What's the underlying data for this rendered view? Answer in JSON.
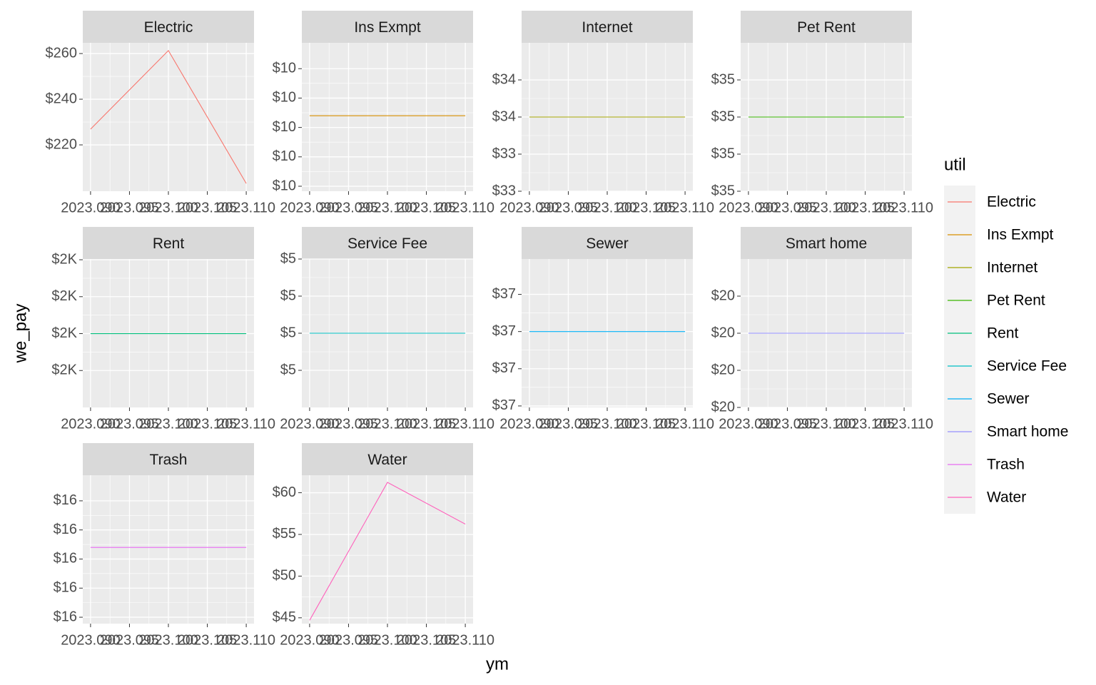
{
  "chart_data": {
    "type": "line",
    "x_label": "ym",
    "y_label": "we_pay",
    "legend_title": "util",
    "x": [
      2023.09,
      2023.1,
      2023.11
    ],
    "xlim": [
      2023.089,
      2023.111
    ],
    "xticks": [
      {
        "value": 2023.09,
        "label": "2023.090"
      },
      2023.095,
      {
        "value": 2023.1,
        "label": "2023.100"
      },
      2023.105,
      {
        "value": 2023.11,
        "label": "2023.110"
      }
    ],
    "grid": true,
    "series": [
      {
        "name": "Electric",
        "color": "#F8766D",
        "values": [
          226.9,
          261.3,
          203.1
        ],
        "ylim": [
          199.7,
          264.7
        ],
        "yticks": [
          {
            "value": 220,
            "label": "$220"
          },
          {
            "value": 240,
            "label": "$240"
          },
          {
            "value": 260,
            "label": "$260"
          }
        ]
      },
      {
        "name": "Ins Exmpt",
        "color": "#D89000",
        "values": [
          10.04,
          10.04,
          10.04
        ],
        "ylim": [
          9.783,
          10.288
        ],
        "yticks": [
          {
            "value": 9.8,
            "label": "$10"
          },
          {
            "value": 9.9,
            "label": "$10"
          },
          {
            "value": 10.0,
            "label": "$10"
          },
          {
            "value": 10.1,
            "label": "$10"
          },
          {
            "value": 10.2,
            "label": "$10"
          }
        ]
      },
      {
        "name": "Internet",
        "color": "#A3A500",
        "values": [
          33.6,
          33.6,
          33.6
        ],
        "ylim": [
          33.2,
          34.0
        ],
        "yticks": [
          {
            "value": 33.2,
            "label": "$33"
          },
          {
            "value": 33.4,
            "label": "$33"
          },
          {
            "value": 33.6,
            "label": "$34"
          },
          {
            "value": 33.8,
            "label": "$34"
          }
        ]
      },
      {
        "name": "Pet Rent",
        "color": "#39B600",
        "values": [
          35.0,
          35.0,
          35.0
        ],
        "ylim": [
          34.8,
          35.2
        ],
        "yticks": [
          {
            "value": 34.8,
            "label": "$35"
          },
          {
            "value": 34.9,
            "label": "$35"
          },
          {
            "value": 35.0,
            "label": "$35"
          },
          {
            "value": 35.1,
            "label": "$35"
          }
        ]
      },
      {
        "name": "Rent",
        "color": "#00BF7D",
        "values": [
          2000,
          2000,
          2000
        ],
        "ylim": [
          1900,
          2101
        ],
        "yticks": [
          {
            "value": 1950,
            "label": "$2K"
          },
          {
            "value": 2000,
            "label": "$2K"
          },
          {
            "value": 2050,
            "label": "$2K"
          },
          {
            "value": 2100,
            "label": "$2K"
          }
        ]
      },
      {
        "name": "Service Fee",
        "color": "#00BFC4",
        "values": [
          5.0,
          5.0,
          5.0
        ],
        "ylim": [
          4.8,
          5.2
        ],
        "yticks": [
          {
            "value": 4.9,
            "label": "$5"
          },
          {
            "value": 5.0,
            "label": "$5"
          },
          {
            "value": 5.1,
            "label": "$5"
          },
          {
            "value": 5.2,
            "label": "$5"
          }
        ]
      },
      {
        "name": "Sewer",
        "color": "#00B0F6",
        "values": [
          37.0,
          37.0,
          37.0
        ],
        "ylim": [
          36.796,
          37.195
        ],
        "yticks": [
          {
            "value": 36.8,
            "label": "$37"
          },
          {
            "value": 36.9,
            "label": "$37"
          },
          {
            "value": 37.0,
            "label": "$37"
          },
          {
            "value": 37.1,
            "label": "$37"
          }
        ]
      },
      {
        "name": "Smart home",
        "color": "#9590FF",
        "values": [
          20.0,
          20.0,
          20.0
        ],
        "ylim": [
          19.8,
          20.2
        ],
        "yticks": [
          {
            "value": 19.8,
            "label": "$20"
          },
          {
            "value": 19.9,
            "label": "$20"
          },
          {
            "value": 20.0,
            "label": "$20"
          },
          {
            "value": 20.1,
            "label": "$20"
          }
        ]
      },
      {
        "name": "Trash",
        "color": "#E76BF3",
        "values": [
          16.04,
          16.04,
          16.04
        ],
        "ylim": [
          15.778,
          16.288
        ],
        "yticks": [
          {
            "value": 15.8,
            "label": "$16"
          },
          {
            "value": 15.9,
            "label": "$16"
          },
          {
            "value": 16.0,
            "label": "$16"
          },
          {
            "value": 16.1,
            "label": "$16"
          },
          {
            "value": 16.2,
            "label": "$16"
          }
        ]
      },
      {
        "name": "Water",
        "color": "#FF62BC",
        "values": [
          44.7,
          61.24,
          56.24
        ],
        "ylim": [
          44.3,
          62.1
        ],
        "yticks": [
          {
            "value": 45,
            "label": "$45"
          },
          {
            "value": 50,
            "label": "$50"
          },
          {
            "value": 55,
            "label": "$55"
          },
          {
            "value": 60,
            "label": "$60"
          }
        ]
      }
    ]
  }
}
